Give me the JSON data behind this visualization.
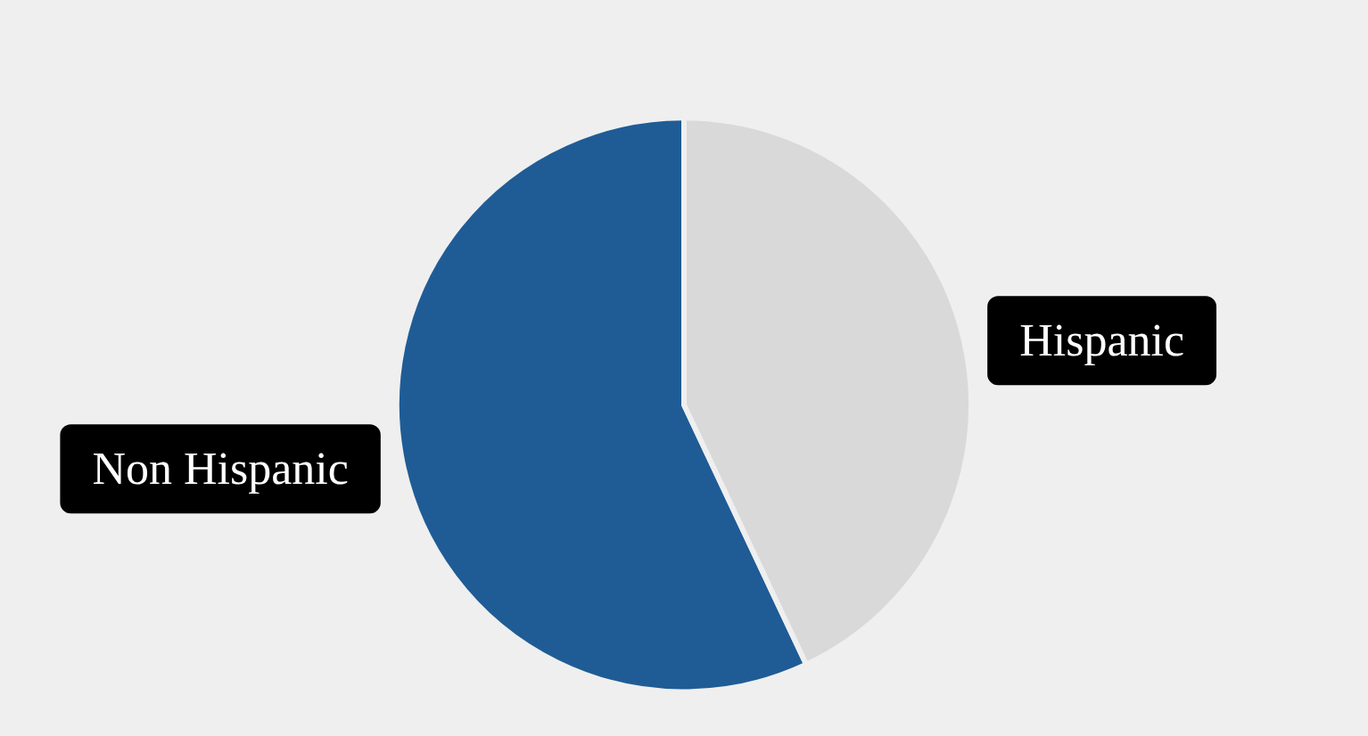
{
  "chart_data": {
    "type": "pie",
    "categories": [
      "Non Hispanic",
      "Hispanic"
    ],
    "values": [
      57,
      43
    ],
    "colors": [
      "#1f5c96",
      "#d9d9d9"
    ],
    "legend": false
  }
}
